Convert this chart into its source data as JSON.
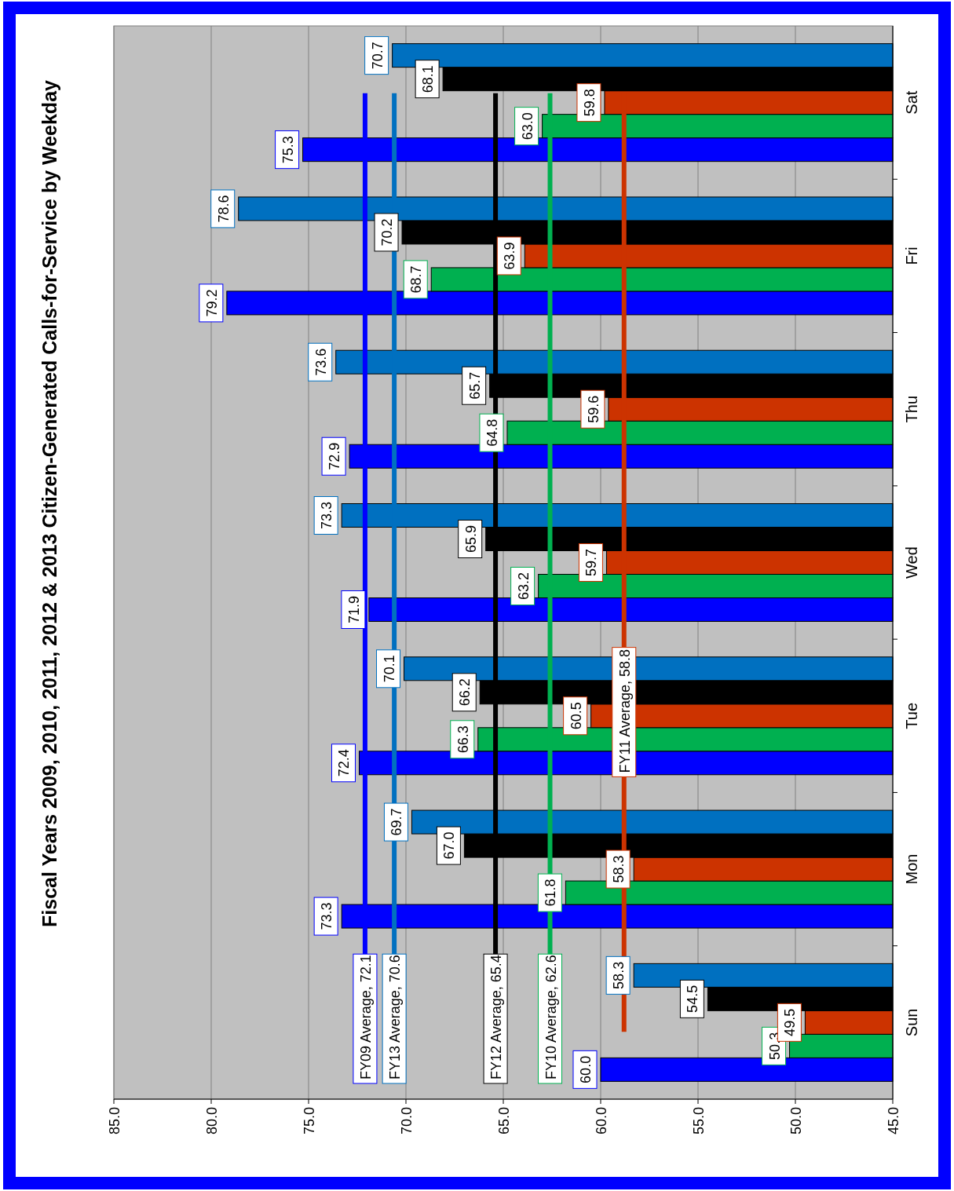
{
  "chart_data": {
    "type": "bar",
    "orientation": "horizontal",
    "title": "Fiscal Years 2009, 2010, 2011, 2012 & 2013 Citizen-Generated Calls-for-Service by Weekday",
    "categories": [
      "Sat",
      "Fri",
      "Thu",
      "Wed",
      "Tue",
      "Mon",
      "Sun"
    ],
    "series": [
      {
        "color": "#0000ff",
        "values": [
          75.3,
          79.2,
          72.9,
          71.9,
          72.4,
          73.3,
          60.0
        ],
        "value_labels": [
          "75.3",
          "79.2",
          "72.9",
          "71.9",
          "72.4",
          "73.3",
          "60.0"
        ]
      },
      {
        "color": "#00b050",
        "values": [
          63.0,
          68.7,
          64.8,
          63.2,
          66.3,
          61.8,
          50.3
        ],
        "value_labels": [
          "63.0",
          "68.7",
          "64.8",
          "63.2",
          "66.3",
          "61.8",
          "50.3"
        ]
      },
      {
        "color": "#cc3300",
        "values": [
          59.8,
          63.9,
          59.6,
          59.7,
          60.5,
          58.3,
          49.5
        ],
        "value_labels": [
          "59.8",
          "63.9",
          "59.6",
          "59.7",
          "60.5",
          "58.3",
          "49.5"
        ]
      },
      {
        "color": "#000000",
        "values": [
          68.1,
          70.2,
          65.7,
          65.9,
          66.2,
          67.0,
          54.5
        ],
        "value_labels": [
          "68.1",
          "70.2",
          "65.7",
          "65.9",
          "66.2",
          "67.0",
          "54.5"
        ]
      },
      {
        "color": "#0070c0",
        "values": [
          70.7,
          78.6,
          73.6,
          73.3,
          70.1,
          69.7,
          58.3
        ],
        "value_labels": [
          "70.7",
          "78.6",
          "73.6",
          "73.3",
          "70.1",
          "69.7",
          "58.3"
        ]
      }
    ],
    "xlim": [
      85,
      45
    ],
    "xticks": [
      {
        "value": 85,
        "label": "85.0"
      },
      {
        "value": 80,
        "label": "80.0"
      },
      {
        "value": 75,
        "label": "75.0"
      },
      {
        "value": 70,
        "label": "70.0"
      },
      {
        "value": 65,
        "label": "65.0"
      },
      {
        "value": 60,
        "label": "60.0"
      },
      {
        "value": 55,
        "label": "55.0"
      },
      {
        "value": 50,
        "label": "50.0"
      },
      {
        "value": 45,
        "label": "45.0"
      }
    ],
    "grid": "x",
    "ref_lines": [
      {
        "axis": "x",
        "value": 72.1,
        "label": "FY09 Average, 72.1",
        "color": "#0000ff"
      },
      {
        "axis": "x",
        "value": 70.6,
        "label": "FY13 Average, 70.6",
        "color": "#0070c0"
      },
      {
        "axis": "x",
        "value": 65.4,
        "label": "FY12 Average, 65.4",
        "color": "#000000"
      },
      {
        "axis": "x",
        "value": 62.6,
        "label": "FY10 Average, 62.6",
        "color": "#00b050"
      },
      {
        "axis": "x",
        "value": 58.8,
        "label": "FY11 Average, 58.8",
        "color": "#cc3300"
      }
    ]
  }
}
